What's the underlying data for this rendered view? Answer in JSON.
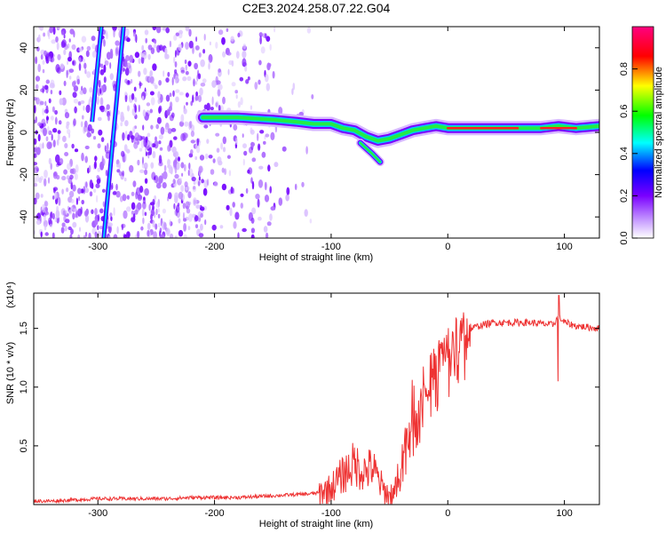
{
  "figure": {
    "title": "C2E3.2024.258.07.22.G04"
  },
  "chart_data": [
    {
      "type": "heatmap",
      "xlabel": "Height of straight line (km)",
      "ylabel": "Frequency (Hz)",
      "xlim": [
        -355,
        130
      ],
      "ylim": [
        -50,
        50
      ],
      "x_ticks": [
        -300,
        -200,
        -100,
        0,
        100
      ],
      "y_ticks": [
        -40,
        -20,
        0,
        20,
        40
      ],
      "colorbar": {
        "label": "Normalized spectral amplitude",
        "range": [
          0,
          1
        ],
        "ticks": [
          "0.0",
          "0.2",
          "0.4",
          "0.6",
          "0.8"
        ],
        "colormap": [
          "#ffffff",
          "#7a00ff",
          "#0000ff",
          "#00ffff",
          "#00ff00",
          "#ffff00",
          "#ff0000",
          "#ff0080"
        ]
      },
      "dominant_ridge": {
        "x": [
          -210,
          -180,
          -150,
          -130,
          -115,
          -100,
          -90,
          -80,
          -70,
          -60,
          -50,
          -40,
          -30,
          -20,
          -10,
          0,
          20,
          40,
          60,
          80,
          95,
          110,
          130
        ],
        "y": [
          7,
          7,
          6,
          5,
          4,
          4,
          2,
          1,
          -2,
          -4,
          -3,
          -1,
          1,
          2,
          3,
          2,
          2,
          2,
          2,
          2,
          3,
          2,
          3
        ]
      },
      "side_branch": {
        "x": [
          -75,
          -65,
          -58
        ],
        "y": [
          -5,
          -10,
          -14
        ]
      },
      "diagonal_tracks": [
        {
          "x": [
            -295,
            -278
          ],
          "y": [
            -50,
            50
          ]
        },
        {
          "x": [
            -305,
            -297
          ],
          "y": [
            5,
            50
          ]
        }
      ]
    },
    {
      "type": "line",
      "xlabel": "Height of straight line (km)",
      "ylabel": "SNR (10 * v/v)",
      "y_scale_label": "(x10⁴)",
      "xlim": [
        -355,
        130
      ],
      "ylim": [
        0,
        1.8
      ],
      "x_ticks": [
        -300,
        -200,
        -100,
        0,
        100
      ],
      "y_ticks": [
        "0.5",
        "1.0",
        "1.5"
      ],
      "line_color": "#ee3333",
      "series": [
        {
          "x": [
            -355,
            -340,
            -320,
            -300,
            -280,
            -260,
            -240,
            -220,
            -200,
            -180,
            -160,
            -140,
            -120,
            -110,
            -100,
            -95,
            -90,
            -85,
            -80,
            -75,
            -70,
            -65,
            -60,
            -55,
            -50,
            -45,
            -40,
            -35,
            -30,
            -25,
            -20,
            -15,
            -10,
            -5,
            0,
            5,
            10,
            20,
            30,
            40,
            50,
            60,
            70,
            80,
            90,
            95,
            100,
            110,
            120,
            130
          ],
          "y": [
            0.03,
            0.03,
            0.04,
            0.05,
            0.05,
            0.05,
            0.05,
            0.06,
            0.06,
            0.06,
            0.07,
            0.08,
            0.09,
            0.1,
            0.14,
            0.2,
            0.25,
            0.3,
            0.35,
            0.3,
            0.28,
            0.32,
            0.22,
            0.12,
            0.08,
            0.15,
            0.35,
            0.55,
            0.75,
            0.9,
            1.0,
            1.1,
            1.2,
            1.3,
            1.35,
            1.4,
            1.45,
            1.5,
            1.53,
            1.55,
            1.55,
            1.55,
            1.55,
            1.54,
            1.53,
            1.6,
            1.55,
            1.52,
            1.51,
            1.5
          ]
        }
      ]
    }
  ]
}
